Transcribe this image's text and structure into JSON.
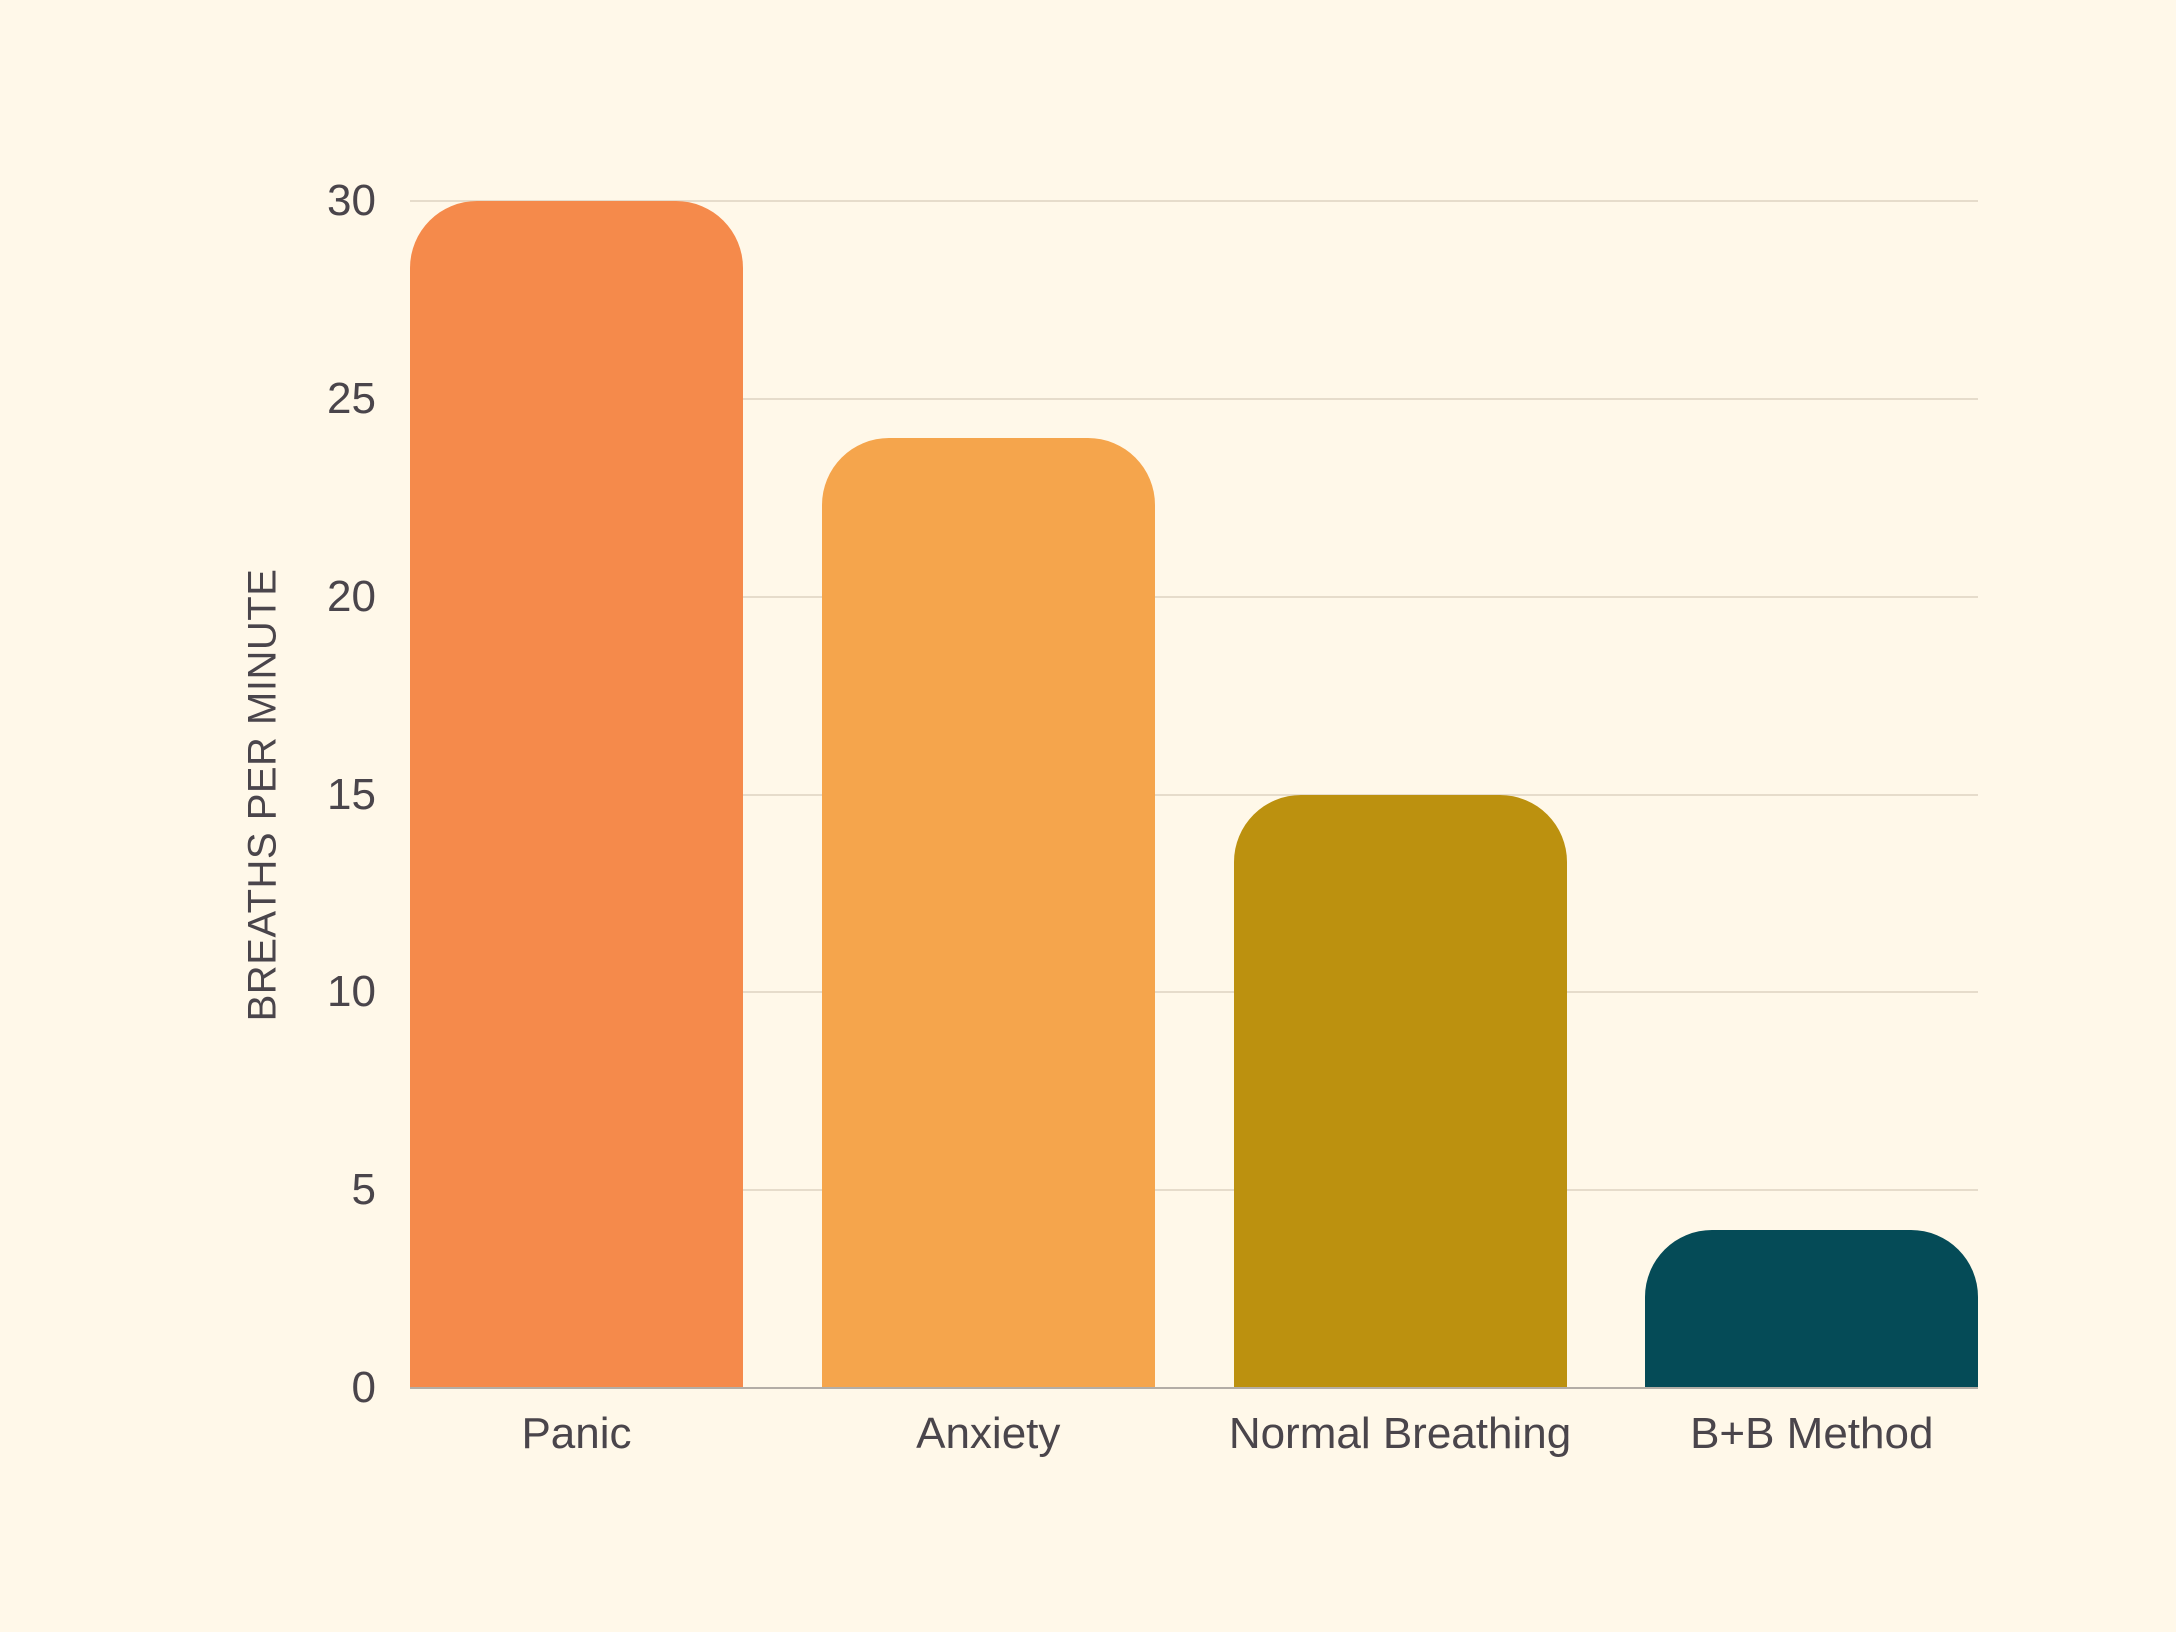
{
  "background": "#fff8e9",
  "chart_data": {
    "type": "bar",
    "title": "",
    "xlabel": "",
    "ylabel": "BREATHS PER MINUTE",
    "categories": [
      "Panic",
      "Anxiety",
      "Normal Breathing",
      "B+B Method"
    ],
    "values": [
      30,
      24,
      15,
      4
    ],
    "colors": [
      "#f58a4b",
      "#f5a54c",
      "#bc910f",
      "#054b57"
    ],
    "ylim": [
      0,
      30
    ],
    "yticks": [
      0,
      5,
      10,
      15,
      20,
      25,
      30
    ],
    "ytick_labels": [
      "0",
      "5",
      "10",
      "15",
      "20",
      "25",
      "30"
    ],
    "grid": true,
    "legend": "none"
  }
}
